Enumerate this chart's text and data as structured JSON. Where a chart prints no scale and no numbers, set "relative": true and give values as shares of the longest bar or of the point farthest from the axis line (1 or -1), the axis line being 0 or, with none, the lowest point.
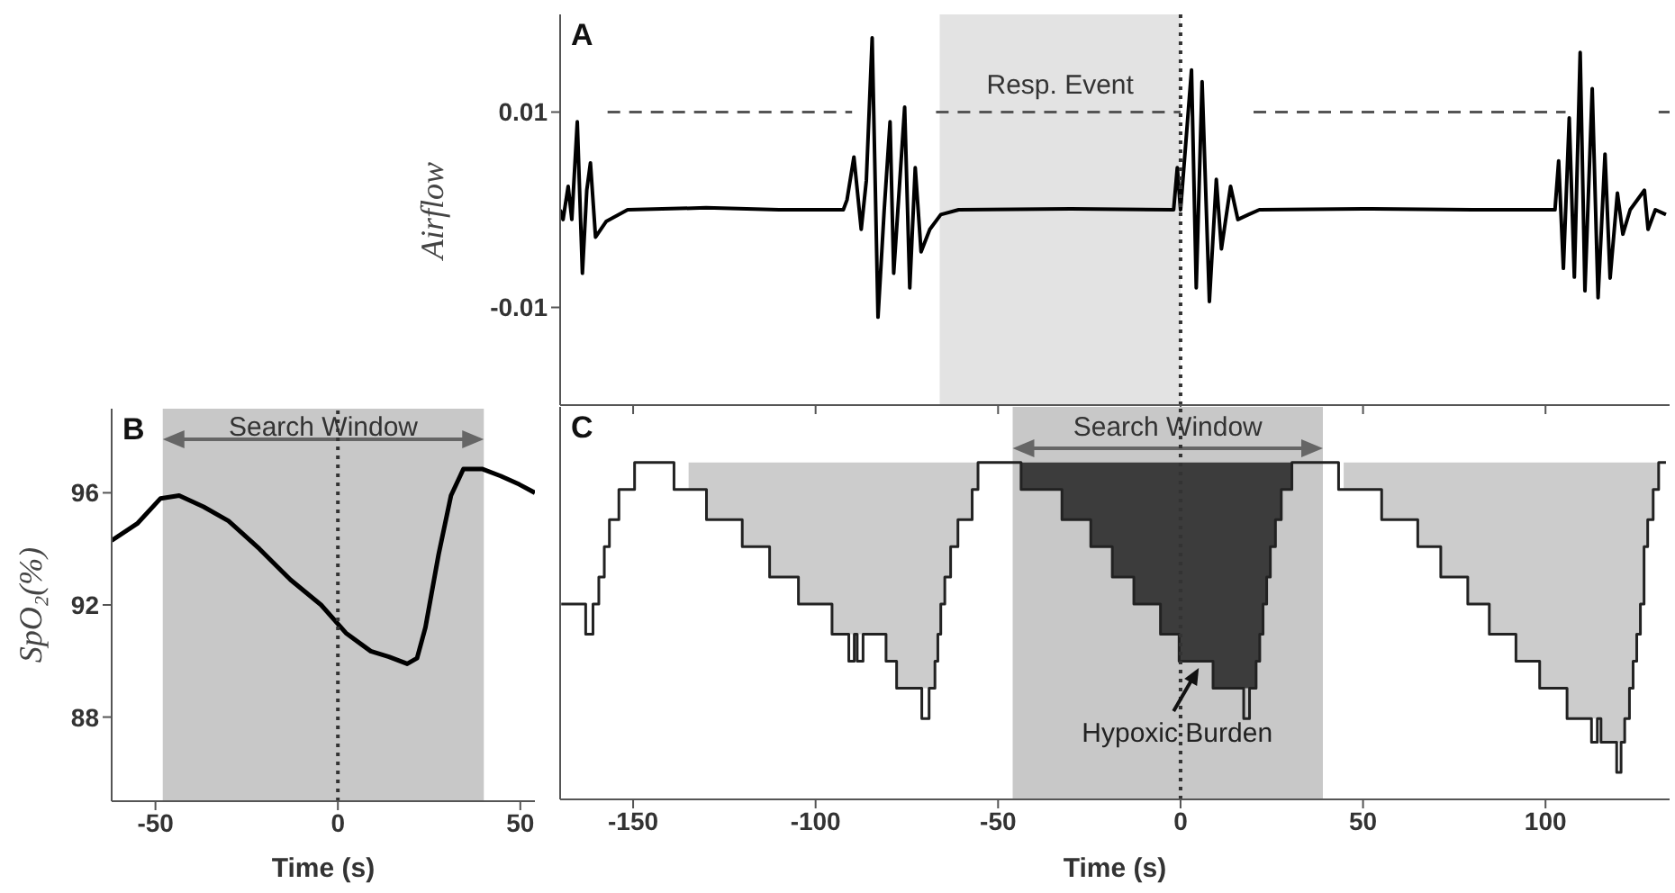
{
  "chart_data": [
    {
      "type": "line",
      "title": "A",
      "ylabel": "Airflow",
      "xlim": [
        -170,
        134
      ],
      "xticks": [
        -150,
        -100,
        -50,
        0,
        50,
        100
      ],
      "ylim": [
        -0.02,
        0.02
      ],
      "yticks": [
        -0.01,
        0.01
      ],
      "tick_labels": "y",
      "series": [
        {
          "color": "#555555",
          "line_style": "dashed",
          "x": [
            -157,
            -90,
            -89,
            -67,
            0,
            1,
            20,
            105.5,
            106,
            131,
            134
          ],
          "values": [
            0.01,
            0.01,
            null,
            0.01,
            0.01,
            null,
            0.01,
            0.01,
            null,
            0.01,
            0.01
          ]
        },
        {
          "color": "#000000",
          "x": [
            -170,
            -169.2,
            -167.8,
            -166.8,
            -165.3,
            -163.9,
            -162.7,
            -161.7,
            -160.3,
            -157.4,
            -151.5,
            -130,
            -110,
            -92.4,
            -91.4,
            -89.5,
            -87.5,
            -86.1,
            -84.5,
            -82.9,
            -81.2,
            -79.6,
            -78.6,
            -75.6,
            -74.2,
            -72.7,
            -71.1,
            -68.7,
            -65.7,
            -60.8,
            -30,
            -1.9,
            -0.9,
            0,
            3,
            4.3,
            5.9,
            7.9,
            9.8,
            11.2,
            13.7,
            15.7,
            18.6,
            21.6,
            50,
            80,
            102.6,
            103.6,
            104.9,
            106.5,
            107.9,
            109.5,
            110.8,
            112.8,
            114.4,
            116.3,
            117.7,
            119.7,
            121.2,
            123.2,
            127.1,
            128.1,
            130.1,
            133
          ],
          "values": [
            0,
            -0.001,
            0.0024,
            -0.001,
            0.009,
            -0.0065,
            0.002,
            0.0048,
            -0.0028,
            -0.0012,
            0,
            0.0002,
            0,
            0,
            0.001,
            0.0054,
            -0.002,
            0.003,
            0.0176,
            -0.011,
            0,
            0.009,
            -0.0065,
            0.0105,
            -0.008,
            0.0043,
            -0.0043,
            -0.002,
            -0.0005,
            0,
            0.0001,
            0,
            0.0043,
            0,
            0.0143,
            -0.008,
            0.0131,
            -0.0094,
            0.0031,
            -0.004,
            0.0024,
            -0.001,
            -0.0005,
            0,
            0.0001,
            0,
            0,
            0.005,
            -0.006,
            0.0094,
            -0.0069,
            0.0161,
            -0.0083,
            0.0124,
            -0.009,
            0.0057,
            -0.007,
            0.0017,
            -0.0025,
            0,
            0.002,
            -0.002,
            0,
            -0.0005
          ]
        }
      ],
      "bands": [
        {
          "axis": "x",
          "from": -66,
          "to": 0,
          "label": "Resp. Event",
          "color": "#e3e3e3"
        }
      ],
      "ref_lines": [
        {
          "axis": "x",
          "value": 0,
          "line_style": "dotted",
          "color": "#333333"
        }
      ]
    },
    {
      "type": "line",
      "title": "B",
      "xlabel": "Time (s)",
      "ylabel": "SpO₂(%)",
      "xlim": [
        -62,
        54
      ],
      "xticks": [
        -50,
        0,
        50
      ],
      "ylim": [
        85,
        99
      ],
      "yticks": [
        88,
        92,
        96
      ],
      "series": [
        {
          "color": "#000000",
          "x": [
            -62,
            -55,
            -48.6,
            -43.5,
            -36.8,
            -30,
            -21.5,
            -13,
            -4.6,
            2.2,
            9,
            14,
            19,
            21.7,
            24,
            27.6,
            31,
            34.4,
            39.5,
            44.6,
            49.7,
            54
          ],
          "values": [
            94.3,
            94.9,
            95.8,
            95.9,
            95.5,
            95.0,
            94.0,
            92.9,
            92.0,
            91.0,
            90.35,
            90.15,
            89.9,
            90.1,
            91.2,
            93.8,
            95.9,
            96.85,
            96.85,
            96.6,
            96.3,
            96.0
          ]
        }
      ],
      "bands": [
        {
          "axis": "x",
          "from": -48,
          "to": 40,
          "label": "Search Window",
          "color": "#c8c8c8"
        }
      ],
      "ref_lines": [
        {
          "axis": "x",
          "value": 0,
          "line_style": "dotted",
          "color": "#333333"
        }
      ]
    },
    {
      "type": "step",
      "title": "C",
      "xlabel": "Time (s)",
      "relative": true,
      "xlim": [
        -170,
        134
      ],
      "xticks": [
        -150,
        -100,
        -50,
        0,
        50,
        100
      ],
      "tick_labels": "x",
      "series": [
        {
          "type": "area",
          "color": "#cccccc",
          "x": [
            -134.8,
            -129.9,
            -120.1,
            -112.6,
            -104.7,
            -95.5,
            -80.7,
            -77.8,
            -67.3,
            -66.5,
            -65.7,
            -64.6,
            -63,
            -61,
            -57.1,
            -55.5
          ],
          "values": [
            1,
            1,
            1,
            1,
            1,
            1,
            1,
            1,
            1,
            1,
            1,
            1,
            1,
            1,
            1,
            1
          ]
        },
        {
          "type": "area",
          "color": "#3c3c3c",
          "x": [
            -43.7,
            -32.5,
            -24.6,
            -18.7,
            -12.8,
            -5.5,
            -0.4,
            8.9,
            20.7,
            21.7,
            22.6,
            23.6,
            24.6,
            26,
            27.6,
            30.5
          ],
          "values": [
            1,
            1,
            1,
            1,
            1,
            1,
            1,
            1,
            1,
            1,
            1,
            1,
            1,
            1,
            1,
            1
          ]
        },
        {
          "type": "area",
          "color": "#cccccc",
          "x": [
            44.7,
            55.1,
            65,
            71.3,
            78.7,
            84.6,
            91.9,
            98.4,
            105.9,
            115.2,
            121.7,
            123,
            124,
            125,
            126,
            127,
            128,
            129.5,
            131
          ],
          "values": [
            1,
            1,
            1,
            1,
            1,
            1,
            1,
            1,
            1,
            1,
            1,
            1,
            1,
            1,
            1,
            1,
            1,
            1,
            1
          ]
        },
        {
          "color": "#222222",
          "x": [
            -169.7,
            -163,
            -161,
            -159.4,
            -157.9,
            -156.5,
            -153.9,
            -149.6,
            -138.8,
            -129.9,
            -120.1,
            -112.6,
            -104.7,
            -95.5,
            -90.9,
            -89.4,
            -88.6,
            -87,
            -80.7,
            -77.8,
            -70.9,
            -68.9,
            -67.3,
            -66.5,
            -65.7,
            -64.6,
            -63,
            -61,
            -57.1,
            -55.5,
            -43.7,
            -32.5,
            -24.6,
            -18.7,
            -12.8,
            -5.5,
            -0.4,
            8.9,
            17.3,
            18.9,
            20.7,
            21.7,
            22.6,
            23.6,
            24.6,
            26,
            27.6,
            30.5,
            43.3,
            55.1,
            65,
            71.3,
            78.7,
            84.6,
            91.9,
            98.4,
            105.9,
            112.6,
            114.2,
            115.2,
            119.5,
            120.7,
            121.7,
            123,
            124,
            125,
            126,
            127,
            128,
            129.5,
            131,
            133
          ],
          "values": [
            0.58,
            0.49,
            0.58,
            0.66,
            0.75,
            0.83,
            0.92,
            1,
            0.92,
            0.83,
            0.75,
            0.66,
            0.58,
            0.49,
            0.41,
            0.49,
            0.41,
            0.49,
            0.41,
            0.33,
            0.24,
            0.33,
            0.41,
            0.49,
            0.58,
            0.66,
            0.75,
            0.83,
            0.92,
            1,
            0.92,
            0.83,
            0.75,
            0.66,
            0.58,
            0.49,
            0.41,
            0.33,
            0.24,
            0.33,
            0.41,
            0.49,
            0.58,
            0.66,
            0.75,
            0.83,
            0.92,
            1,
            0.92,
            0.83,
            0.75,
            0.66,
            0.58,
            0.49,
            0.41,
            0.33,
            0.24,
            0.17,
            0.24,
            0.17,
            0.08,
            0.17,
            0.24,
            0.33,
            0.41,
            0.49,
            0.58,
            0.75,
            0.83,
            0.92,
            1,
            1
          ]
        }
      ],
      "bands": [
        {
          "axis": "x",
          "from": -46,
          "to": 39,
          "label": "Search Window",
          "color": "#c8c8c8"
        }
      ],
      "ref_lines": [
        {
          "axis": "x",
          "value": 0,
          "line_style": "dotted",
          "color": "#333333"
        }
      ],
      "annotations": [
        {
          "text": "Hypoxic Burden",
          "x": 5,
          "y": 0.39
        }
      ]
    }
  ]
}
